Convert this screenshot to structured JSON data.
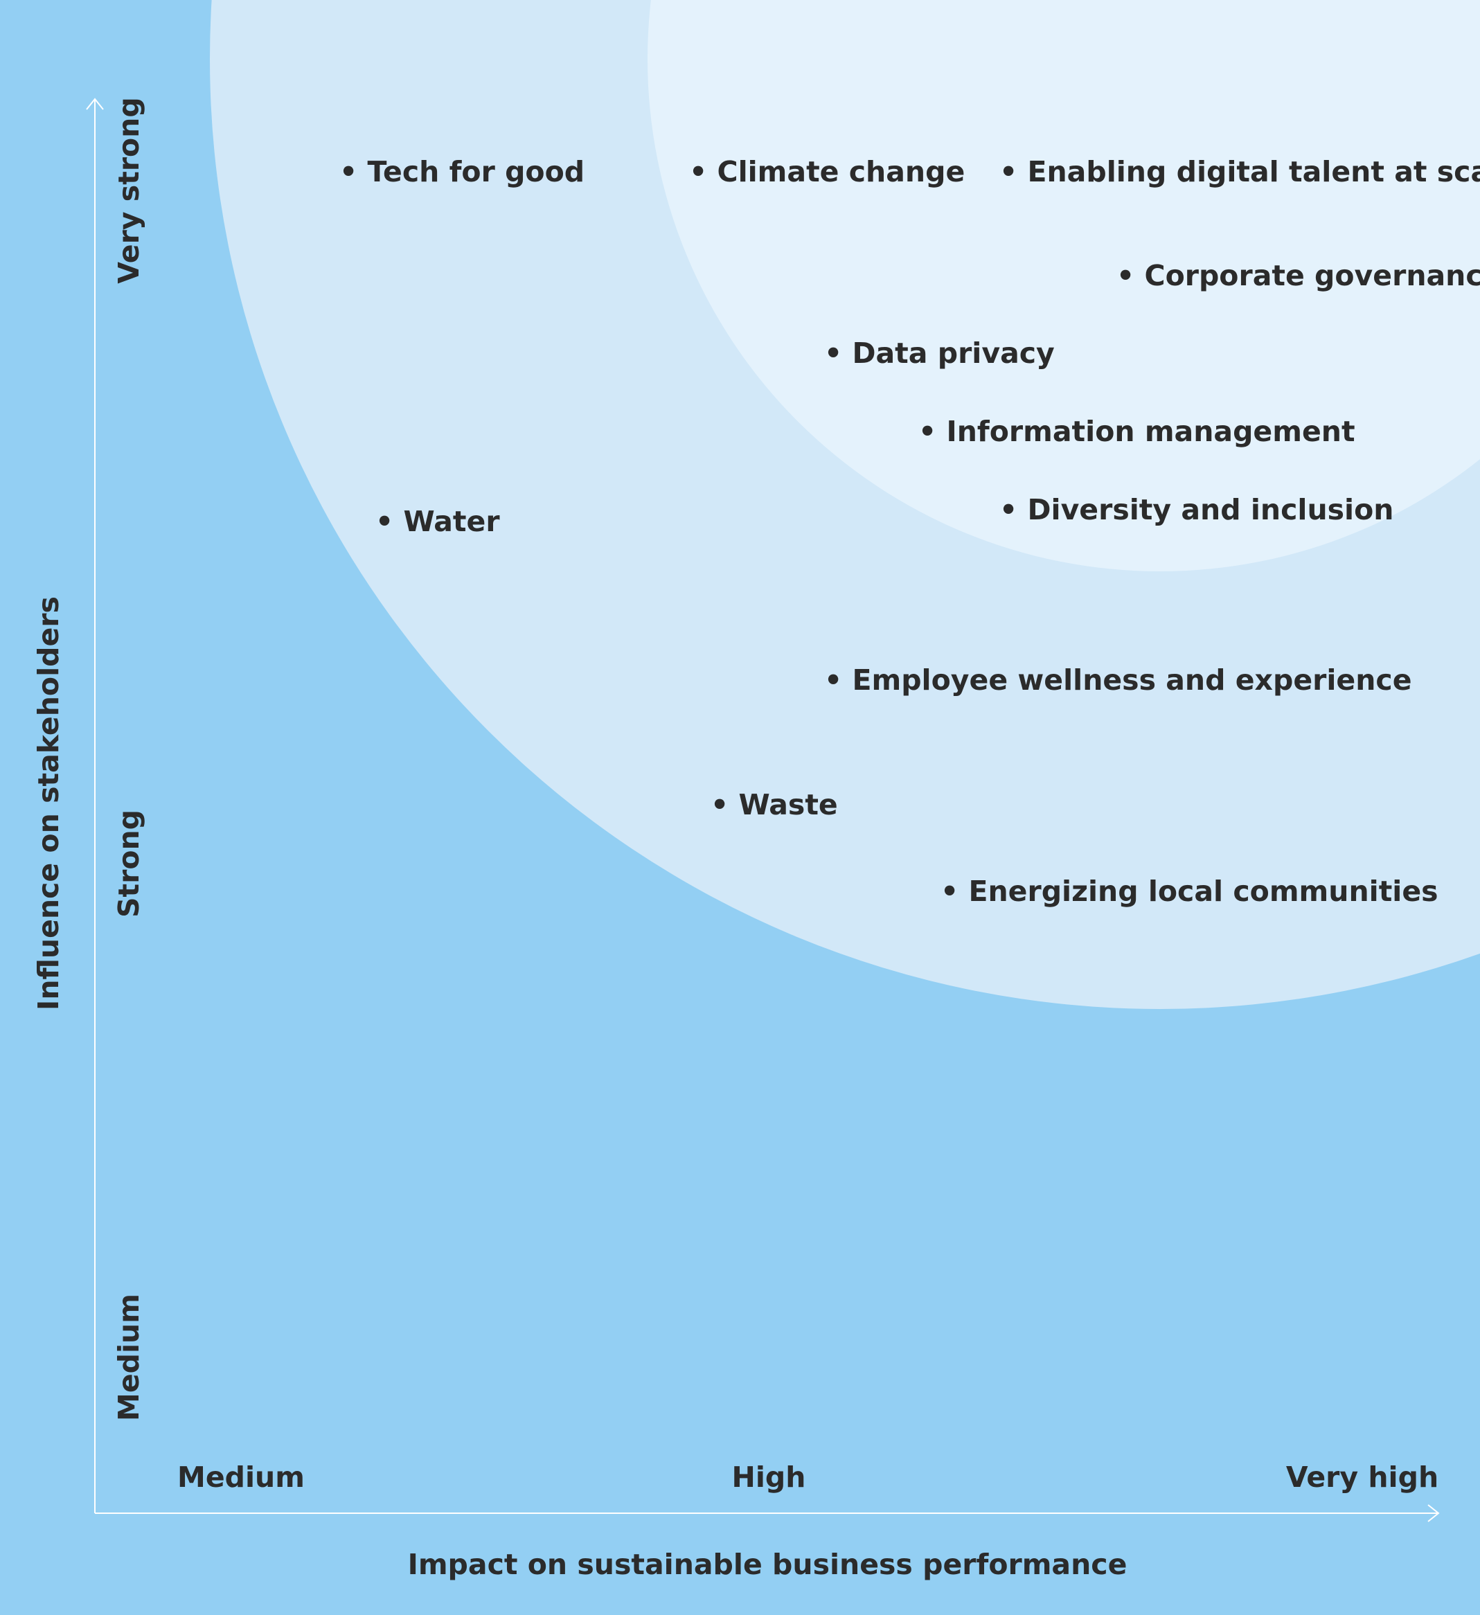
{
  "colors": {
    "background": "#93cff3",
    "outer_zone": "#d2e8f8",
    "inner_zone": "#e4f2fc",
    "text": "#2b2b2b",
    "axis": "#ffffff"
  },
  "axes": {
    "x_title": "Impact on sustainable business performance",
    "y_title": "Influence on stakeholders",
    "x_ticks": [
      "Medium",
      "High",
      "Very high"
    ],
    "y_ticks": [
      "Medium",
      "Strong",
      "Very strong"
    ]
  },
  "points": [
    {
      "label": "Tech for good"
    },
    {
      "label": "Climate change"
    },
    {
      "label": "Enabling digital talent at scale"
    },
    {
      "label": "Corporate governance"
    },
    {
      "label": "Data privacy"
    },
    {
      "label": "Information management"
    },
    {
      "label": "Diversity and inclusion"
    },
    {
      "label": "Water"
    },
    {
      "label": "Employee wellness and experience"
    },
    {
      "label": "Waste"
    },
    {
      "label": "Energizing local communities"
    }
  ]
}
